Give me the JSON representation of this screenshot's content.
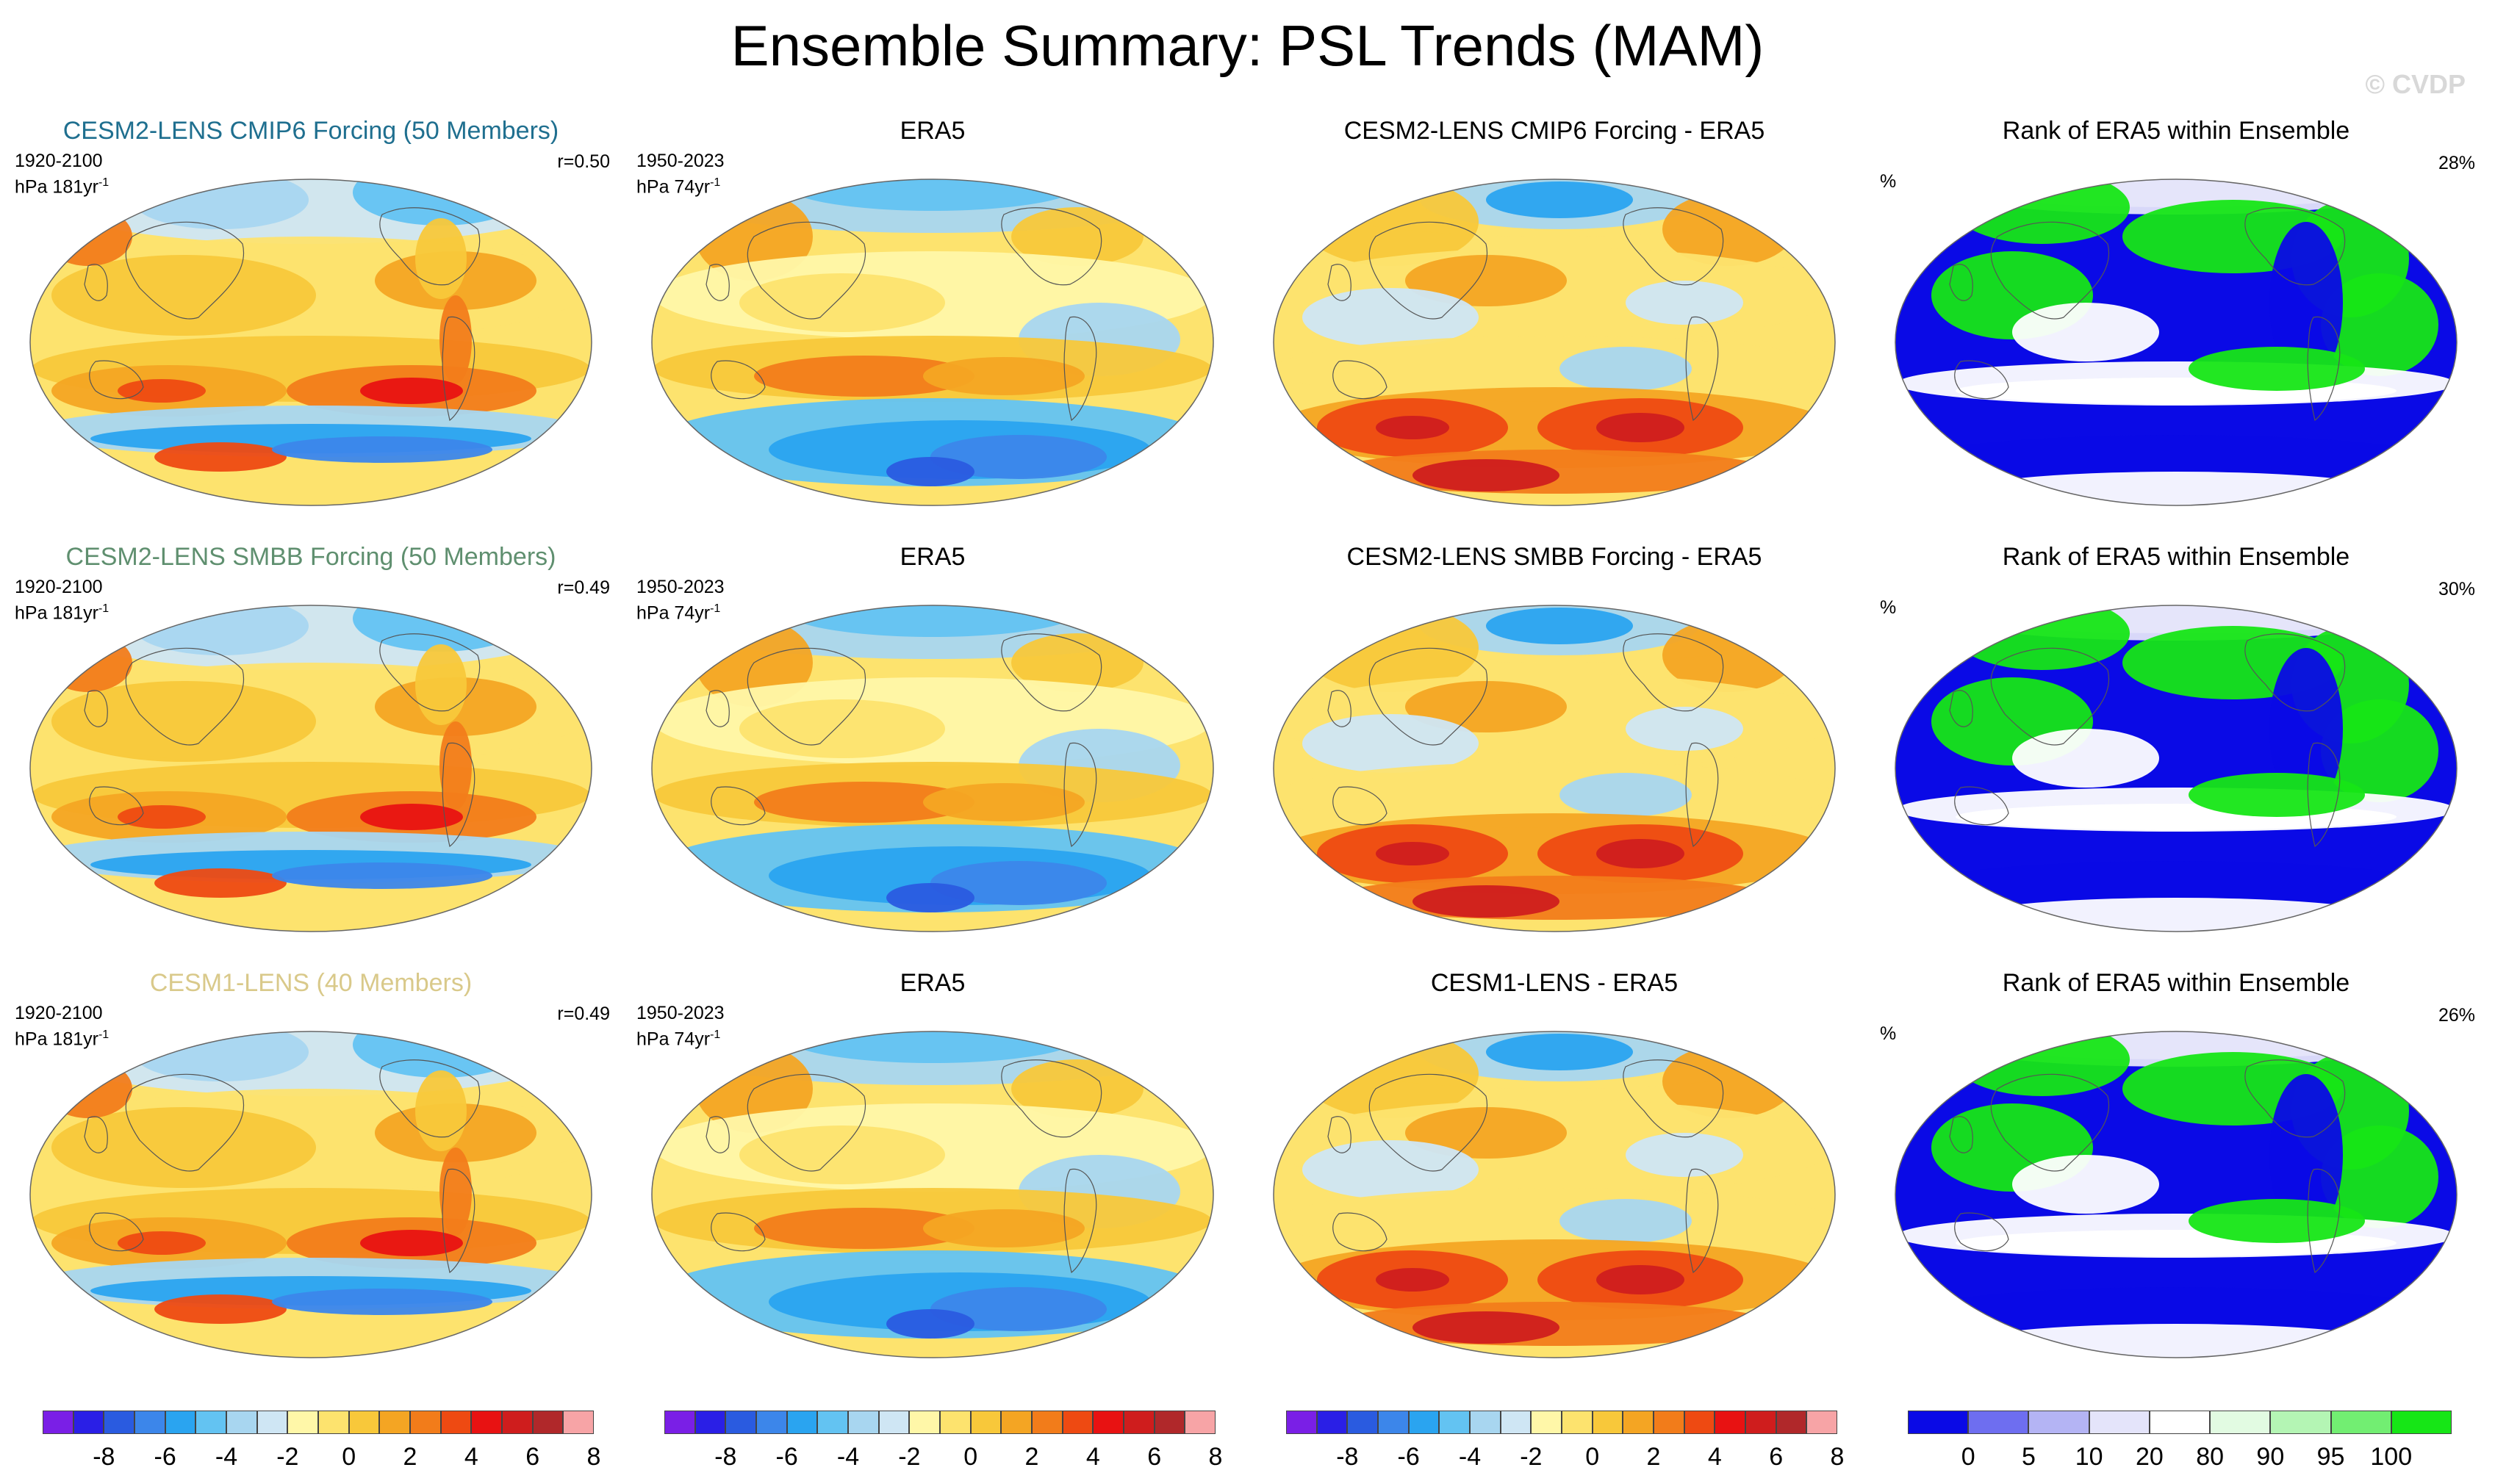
{
  "figure": {
    "title": "Ensemble Summary: PSL Trends (MAM)",
    "copyright": "© CVDP"
  },
  "rows": [
    {
      "model_title": "CESM2-LENS CMIP6 Forcing (50 Members)",
      "model_title_color": "#1f6f8f",
      "model_period": "1920-2100",
      "model_units": "hPa 181yr",
      "model_units_exp": "-1",
      "correlation": "r=0.50",
      "obs_title": "ERA5",
      "obs_period": "1950-2023",
      "obs_units": "hPa 74yr",
      "obs_units_exp": "-1",
      "diff_title": "CESM2-LENS CMIP6 Forcing - ERA5",
      "rank_title": "Rank of ERA5 within Ensemble",
      "rank_unit": "%",
      "rank_pct": "28%"
    },
    {
      "model_title": "CESM2-LENS SMBB Forcing (50 Members)",
      "model_title_color": "#5f8f6f",
      "model_period": "1920-2100",
      "model_units": "hPa 181yr",
      "model_units_exp": "-1",
      "correlation": "r=0.49",
      "obs_title": "ERA5",
      "obs_period": "1950-2023",
      "obs_units": "hPa 74yr",
      "obs_units_exp": "-1",
      "diff_title": "CESM2-LENS SMBB Forcing - ERA5",
      "rank_title": "Rank of ERA5 within Ensemble",
      "rank_unit": "%",
      "rank_pct": "30%"
    },
    {
      "model_title": "CESM1-LENS (40 Members)",
      "model_title_color": "#d9c98a",
      "model_period": "1920-2100",
      "model_units": "hPa 181yr",
      "model_units_exp": "-1",
      "correlation": "r=0.49",
      "obs_title": "ERA5",
      "obs_period": "1950-2023",
      "obs_units": "hPa 74yr",
      "obs_units_exp": "-1",
      "diff_title": "CESM1-LENS - ERA5",
      "rank_title": "Rank of ERA5 within Ensemble",
      "rank_unit": "%",
      "rank_pct": "26%"
    }
  ],
  "trend_colorbar": {
    "labels": [
      "-8",
      "-6",
      "-4",
      "-2",
      "0",
      "2",
      "4",
      "6",
      "8"
    ],
    "colors": [
      "#7a1fe6",
      "#2a1fe6",
      "#2a5be0",
      "#3c86ea",
      "#2aa4f0",
      "#63c3f2",
      "#a8d6f0",
      "#cfe6f4",
      "#fff7a8",
      "#fde36e",
      "#f8c83a",
      "#f4a523",
      "#f27c1a",
      "#ee4a12",
      "#e81212",
      "#cf1d1d",
      "#b0282a",
      "#f7a4a6"
    ]
  },
  "rank_colorbar": {
    "labels": [
      "0",
      "5",
      "10",
      "20",
      "80",
      "90",
      "95",
      "100"
    ],
    "colors": [
      "#0a0ae6",
      "#6e6ef0",
      "#b4b4f4",
      "#e4e4fa",
      "#ffffff",
      "#e2fbe2",
      "#b4f5b4",
      "#72ee72",
      "#16e616"
    ]
  },
  "colors": {
    "land_outline": "#555555",
    "map_border": "#666666"
  }
}
